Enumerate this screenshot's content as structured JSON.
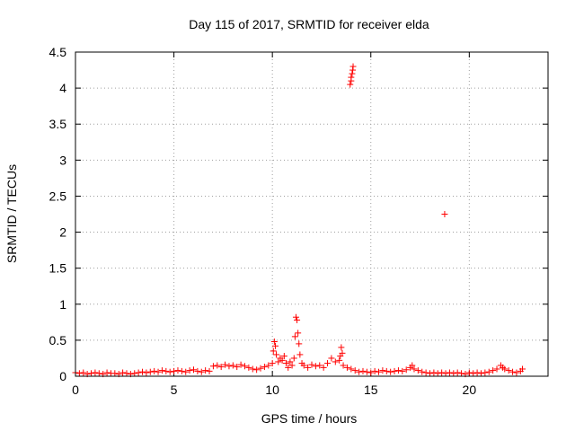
{
  "chart_data": {
    "type": "scatter",
    "title": "Day 115 of 2017, SRMTID for receiver elda",
    "xlabel": "GPS time / hours",
    "ylabel": "SRMTID / TECUs",
    "xlim": [
      0,
      24
    ],
    "ylim": [
      0,
      4.5
    ],
    "xticks": [
      0,
      5,
      10,
      15,
      20
    ],
    "yticks": [
      0,
      0.5,
      1,
      1.5,
      2,
      2.5,
      3,
      3.5,
      4,
      4.5
    ],
    "xtick_labels": [
      "0",
      "5",
      "10",
      "15",
      "20"
    ],
    "ytick_labels": [
      "0",
      "0.5",
      "1",
      "1.5",
      "2",
      "2.5",
      "3",
      "3.5",
      "4",
      "4.5"
    ],
    "grid": true,
    "marker": "plus",
    "color": "#ff0000",
    "series": [
      {
        "name": "SRMTID",
        "x": [
          0.0,
          0.2,
          0.4,
          0.6,
          0.8,
          1.0,
          1.2,
          1.4,
          1.6,
          1.8,
          2.0,
          2.2,
          2.4,
          2.6,
          2.8,
          3.0,
          3.2,
          3.4,
          3.6,
          3.8,
          4.0,
          4.2,
          4.4,
          4.6,
          4.8,
          5.0,
          5.2,
          5.4,
          5.6,
          5.8,
          6.0,
          6.2,
          6.4,
          6.6,
          6.8,
          7.0,
          7.2,
          7.4,
          7.6,
          7.8,
          8.0,
          8.2,
          8.4,
          8.6,
          8.8,
          9.0,
          9.2,
          9.4,
          9.6,
          9.8,
          10.0,
          10.05,
          10.1,
          10.15,
          10.2,
          10.3,
          10.4,
          10.5,
          10.6,
          10.7,
          10.8,
          10.9,
          11.0,
          11.1,
          11.15,
          11.2,
          11.25,
          11.3,
          11.35,
          11.4,
          11.5,
          11.6,
          11.8,
          12.0,
          12.2,
          12.4,
          12.6,
          12.8,
          13.0,
          13.2,
          13.4,
          13.45,
          13.5,
          13.55,
          13.6,
          13.8,
          14.0,
          14.2,
          14.4,
          14.6,
          14.8,
          15.0,
          15.2,
          15.4,
          15.6,
          15.8,
          16.0,
          16.2,
          16.4,
          16.6,
          16.8,
          17.0,
          17.1,
          17.2,
          17.4,
          17.6,
          17.8,
          18.0,
          18.2,
          18.4,
          18.6,
          18.8,
          19.0,
          19.2,
          19.4,
          19.6,
          19.8,
          20.0,
          20.2,
          20.4,
          20.6,
          20.8,
          21.0,
          21.2,
          21.4,
          21.6,
          21.7,
          21.8,
          22.0,
          22.2,
          22.4,
          22.6,
          22.7,
          13.95,
          14.0,
          14.05,
          14.1,
          14.0,
          14.08,
          18.75
        ],
        "y": [
          0.05,
          0.04,
          0.05,
          0.03,
          0.04,
          0.05,
          0.04,
          0.03,
          0.05,
          0.04,
          0.04,
          0.03,
          0.05,
          0.04,
          0.03,
          0.04,
          0.05,
          0.06,
          0.05,
          0.06,
          0.07,
          0.06,
          0.08,
          0.07,
          0.06,
          0.07,
          0.08,
          0.07,
          0.06,
          0.08,
          0.09,
          0.07,
          0.06,
          0.08,
          0.07,
          0.14,
          0.15,
          0.13,
          0.16,
          0.14,
          0.15,
          0.13,
          0.16,
          0.14,
          0.12,
          0.1,
          0.09,
          0.11,
          0.13,
          0.15,
          0.18,
          0.35,
          0.48,
          0.42,
          0.3,
          0.2,
          0.25,
          0.22,
          0.28,
          0.18,
          0.12,
          0.2,
          0.15,
          0.25,
          0.55,
          0.82,
          0.78,
          0.6,
          0.45,
          0.3,
          0.18,
          0.15,
          0.12,
          0.16,
          0.14,
          0.15,
          0.12,
          0.18,
          0.25,
          0.2,
          0.22,
          0.28,
          0.4,
          0.32,
          0.15,
          0.12,
          0.1,
          0.08,
          0.06,
          0.07,
          0.06,
          0.05,
          0.07,
          0.06,
          0.08,
          0.07,
          0.06,
          0.07,
          0.08,
          0.07,
          0.09,
          0.12,
          0.15,
          0.1,
          0.08,
          0.06,
          0.05,
          0.04,
          0.05,
          0.04,
          0.05,
          0.04,
          0.05,
          0.04,
          0.05,
          0.04,
          0.03,
          0.05,
          0.04,
          0.05,
          0.04,
          0.05,
          0.06,
          0.08,
          0.1,
          0.15,
          0.12,
          0.1,
          0.08,
          0.06,
          0.05,
          0.07,
          0.1,
          4.05,
          4.1,
          4.2,
          4.3,
          4.15,
          4.25,
          2.25
        ]
      }
    ]
  }
}
